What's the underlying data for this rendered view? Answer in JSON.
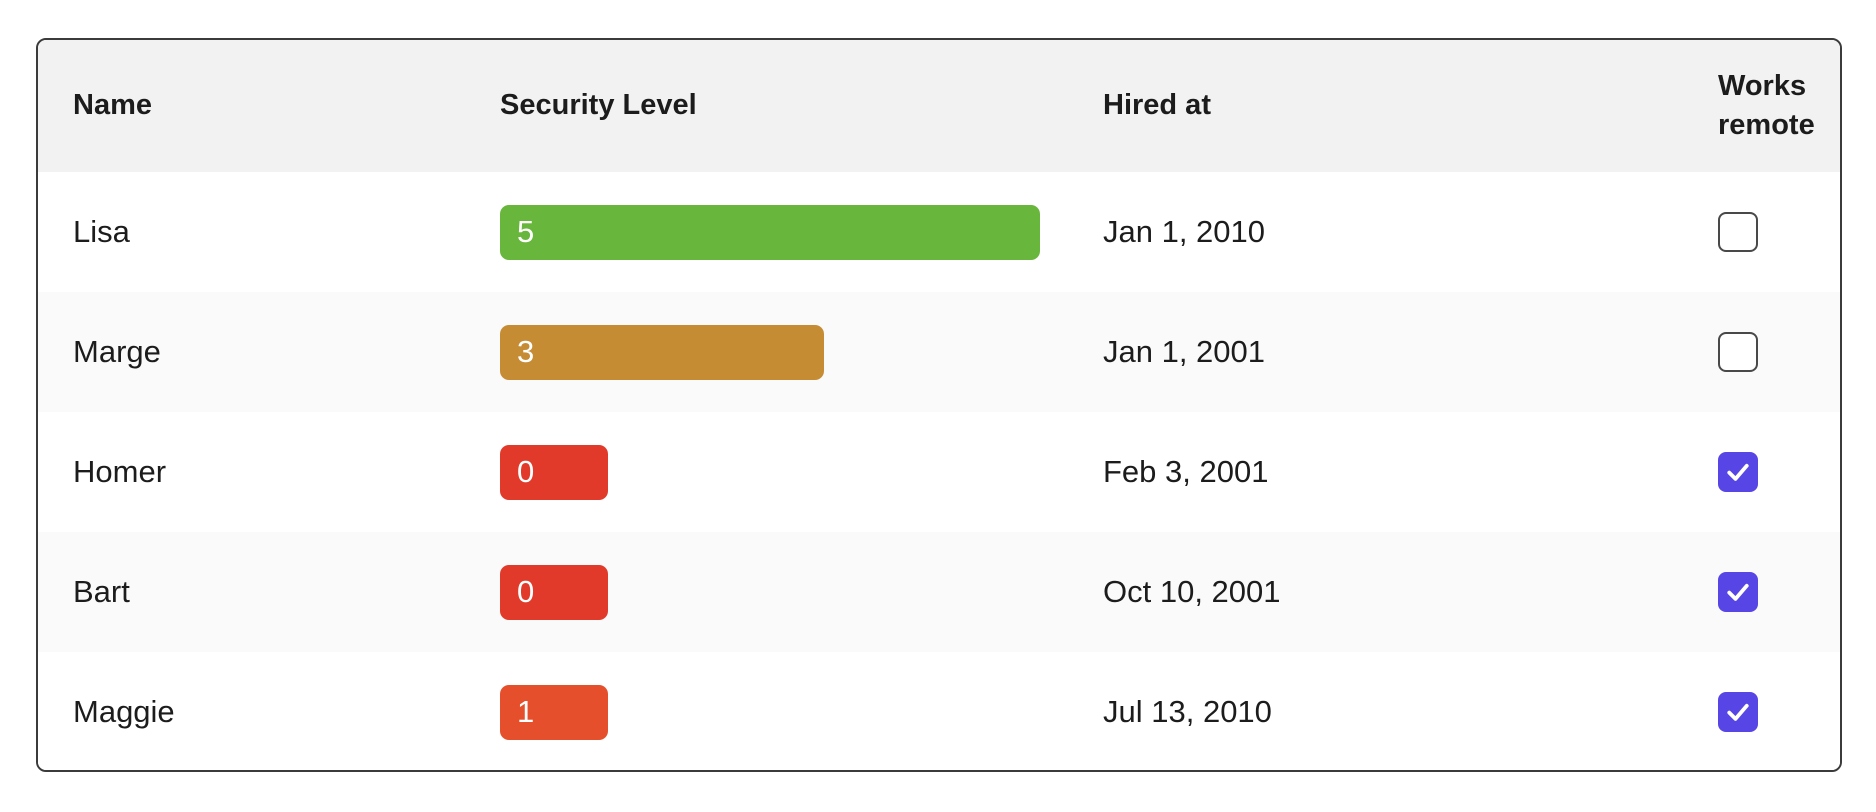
{
  "table": {
    "columns": [
      {
        "label": "Name"
      },
      {
        "label": "Security Level"
      },
      {
        "label": "Hired at"
      },
      {
        "label": "Works remote"
      }
    ],
    "rows": [
      {
        "name": "Lisa",
        "security_level": 5,
        "bar_color": "#69b63c",
        "hired_at": "Jan 1, 2010",
        "works_remote": false
      },
      {
        "name": "Marge",
        "security_level": 3,
        "bar_color": "#c68c34",
        "hired_at": "Jan 1, 2001",
        "works_remote": false
      },
      {
        "name": "Homer",
        "security_level": 0,
        "bar_color": "#e23a2a",
        "hired_at": "Feb 3, 2001",
        "works_remote": true
      },
      {
        "name": "Bart",
        "security_level": 0,
        "bar_color": "#e23a2a",
        "hired_at": "Oct 10, 2001",
        "works_remote": true
      },
      {
        "name": "Maggie",
        "security_level": 1,
        "bar_color": "#e64f2b",
        "hired_at": "Jul 13, 2010",
        "works_remote": true
      }
    ],
    "max_level": 5
  },
  "colors": {
    "checkbox_checked": "#5746e5",
    "checkbox_border": "#494949",
    "header_bg": "#f2f2f2",
    "stripe_bg": "#fafafa",
    "card_border": "#3b3b3b",
    "text": "#1c1c1c",
    "bar_text": "#ffffff"
  }
}
